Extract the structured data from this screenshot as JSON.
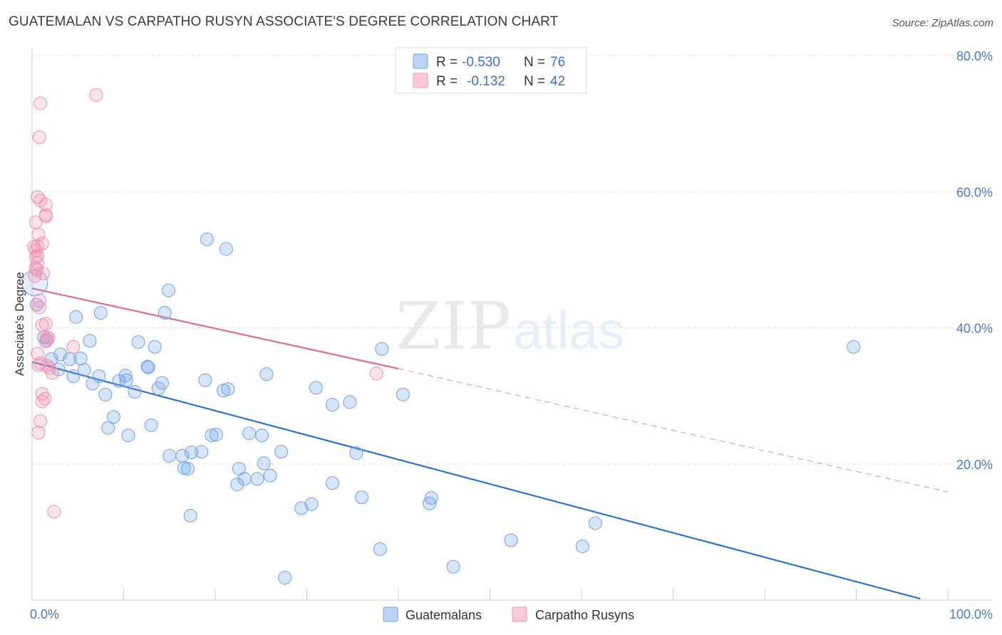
{
  "header": {
    "title": "GUATEMALAN VS CARPATHO RUSYN ASSOCIATE'S DEGREE CORRELATION CHART",
    "source": "Source: ZipAtlas.com"
  },
  "watermark": {
    "zip": "ZIP",
    "atlas": "atlas"
  },
  "legend": {
    "rows": [
      {
        "r_label": "R =",
        "r_value": "-0.530",
        "n_label": "N =",
        "n_value": "76",
        "color": "#6fa0e8"
      },
      {
        "r_label": "R =",
        "r_value": "-0.132",
        "n_label": "N =",
        "n_value": "42",
        "color": "#f08fb0"
      }
    ]
  },
  "bottom_legend": [
    {
      "label": "Guatemalans",
      "color": "#6fa0e8"
    },
    {
      "label": "Carpatho Rusyns",
      "color": "#f08fb0"
    }
  ],
  "chart_data": {
    "type": "scatter",
    "title": "GUATEMALAN VS CARPATHO RUSYN ASSOCIATE'S DEGREE CORRELATION CHART",
    "xlabel": "",
    "ylabel": "Associate's Degree",
    "xlim": [
      0,
      100
    ],
    "ylim": [
      0,
      80
    ],
    "x_tick_labels": [
      "0.0%",
      "100.0%"
    ],
    "y_ticks": [
      20,
      40,
      60,
      80
    ],
    "y_tick_labels": [
      "20.0%",
      "40.0%",
      "60.0%",
      "80.0%"
    ],
    "grid": true,
    "series": [
      {
        "name": "Guatemalans",
        "color": "#6fa0e8",
        "line_color": "#2f6fcf",
        "trend": {
          "x0": 0,
          "y0": 35.0,
          "x1": 97,
          "y1": 0.2,
          "dashed_to": null
        },
        "points": [
          [
            0.3,
            46.6
          ],
          [
            0.5,
            43.4
          ],
          [
            1.3,
            38.6
          ],
          [
            1.6,
            38.2
          ],
          [
            4.8,
            41.6
          ],
          [
            7.5,
            42.2
          ],
          [
            6.3,
            38.1
          ],
          [
            3.1,
            36.1
          ],
          [
            4.1,
            35.4
          ],
          [
            5.3,
            35.5
          ],
          [
            2.1,
            35.4
          ],
          [
            2.9,
            33.9
          ],
          [
            4.5,
            32.9
          ],
          [
            5.7,
            33.8
          ],
          [
            7.3,
            32.9
          ],
          [
            9.5,
            32.2
          ],
          [
            10.2,
            33.0
          ],
          [
            10.3,
            32.3
          ],
          [
            6.6,
            31.8
          ],
          [
            8.0,
            30.2
          ],
          [
            11.2,
            30.6
          ],
          [
            11.6,
            37.9
          ],
          [
            13.4,
            37.2
          ],
          [
            12.6,
            34.3
          ],
          [
            12.7,
            34.2
          ],
          [
            14.2,
            31.9
          ],
          [
            13.8,
            31.1
          ],
          [
            14.9,
            45.5
          ],
          [
            14.5,
            42.2
          ],
          [
            19.1,
            53.0
          ],
          [
            21.2,
            51.6
          ],
          [
            18.9,
            32.3
          ],
          [
            20.9,
            30.8
          ],
          [
            21.4,
            31.0
          ],
          [
            25.6,
            33.2
          ],
          [
            31.0,
            31.2
          ],
          [
            32.8,
            28.7
          ],
          [
            34.7,
            29.1
          ],
          [
            38.2,
            36.9
          ],
          [
            89.7,
            37.2
          ],
          [
            8.9,
            26.9
          ],
          [
            8.3,
            25.3
          ],
          [
            10.5,
            24.2
          ],
          [
            13.0,
            25.7
          ],
          [
            19.6,
            24.2
          ],
          [
            20.1,
            24.3
          ],
          [
            23.7,
            24.5
          ],
          [
            25.1,
            24.2
          ],
          [
            15.0,
            21.2
          ],
          [
            16.4,
            21.2
          ],
          [
            17.4,
            21.7
          ],
          [
            18.5,
            21.8
          ],
          [
            16.6,
            19.4
          ],
          [
            17.0,
            19.3
          ],
          [
            22.6,
            19.3
          ],
          [
            25.3,
            20.1
          ],
          [
            27.2,
            21.8
          ],
          [
            23.2,
            17.8
          ],
          [
            22.4,
            17.0
          ],
          [
            24.6,
            17.8
          ],
          [
            26.0,
            18.3
          ],
          [
            32.8,
            17.2
          ],
          [
            35.4,
            21.6
          ],
          [
            36.0,
            15.1
          ],
          [
            43.4,
            14.2
          ],
          [
            43.6,
            15.0
          ],
          [
            29.4,
            13.5
          ],
          [
            30.5,
            14.1
          ],
          [
            17.3,
            12.4
          ],
          [
            52.3,
            8.8
          ],
          [
            61.5,
            11.3
          ],
          [
            60.1,
            7.9
          ],
          [
            38.0,
            7.5
          ],
          [
            46.0,
            4.9
          ],
          [
            27.6,
            3.3
          ],
          [
            40.5,
            30.2
          ]
        ]
      },
      {
        "name": "Carpatho Rusyns",
        "color": "#f08fb0",
        "line_color": "#e06c95",
        "trend": {
          "x0": 0,
          "y0": 45.8,
          "x1": 40,
          "y1": 34.0,
          "dashed_to": {
            "x": 100,
            "y": 15.9
          }
        },
        "points": [
          [
            0.9,
            73.0
          ],
          [
            7.0,
            74.2
          ],
          [
            0.8,
            68.0
          ],
          [
            0.6,
            59.2
          ],
          [
            0.9,
            58.7
          ],
          [
            1.5,
            58.1
          ],
          [
            1.5,
            56.6
          ],
          [
            1.5,
            56.4
          ],
          [
            0.4,
            55.5
          ],
          [
            0.7,
            53.7
          ],
          [
            1.1,
            52.4
          ],
          [
            0.2,
            51.9
          ],
          [
            0.4,
            51.4
          ],
          [
            0.6,
            50.6
          ],
          [
            0.4,
            50.4
          ],
          [
            0.6,
            49.5
          ],
          [
            0.4,
            48.8
          ],
          [
            0.5,
            48.5
          ],
          [
            0.3,
            47.6
          ],
          [
            0.8,
            43.0
          ],
          [
            1.1,
            40.4
          ],
          [
            1.5,
            40.6
          ],
          [
            1.6,
            38.6
          ],
          [
            1.8,
            38.5
          ],
          [
            1.5,
            38.0
          ],
          [
            4.5,
            37.2
          ],
          [
            0.6,
            36.2
          ],
          [
            0.9,
            34.8
          ],
          [
            0.7,
            34.5
          ],
          [
            1.6,
            34.5
          ],
          [
            1.9,
            34.1
          ],
          [
            2.2,
            33.4
          ],
          [
            37.6,
            33.3
          ],
          [
            1.1,
            30.3
          ],
          [
            1.4,
            29.6
          ],
          [
            1.1,
            29.2
          ],
          [
            0.9,
            26.3
          ],
          [
            0.7,
            24.6
          ],
          [
            2.4,
            13.0
          ],
          [
            0.6,
            52.0
          ],
          [
            1.2,
            48.0
          ],
          [
            0.8,
            44.0
          ]
        ]
      }
    ],
    "legend_placement": "top-center"
  }
}
